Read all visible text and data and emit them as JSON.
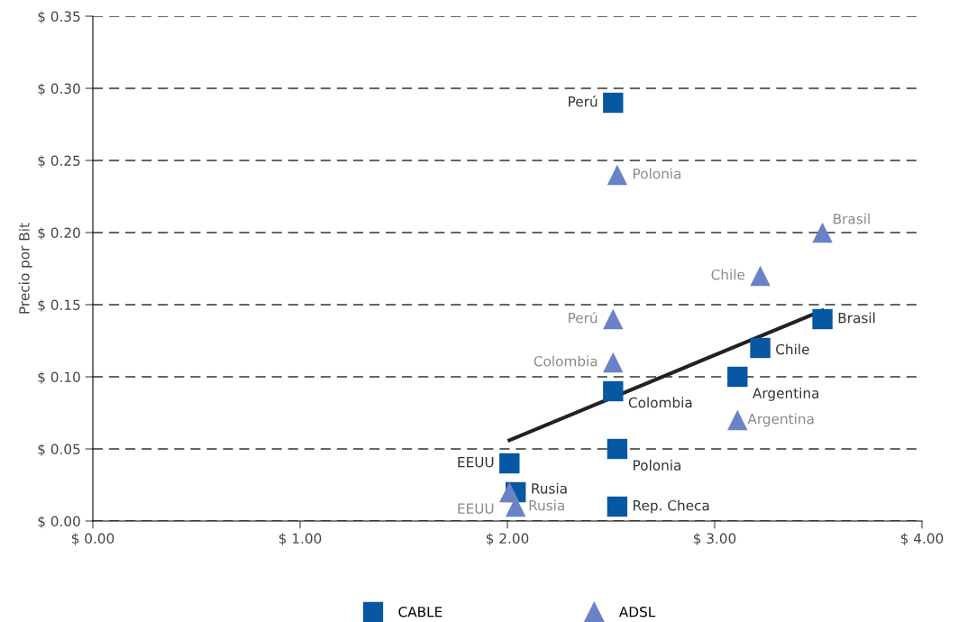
{
  "chart_data": {
    "type": "scatter",
    "ylabel": "Precio por Bit",
    "grid": "y",
    "legend": "bottom",
    "xlim": [
      0,
      4
    ],
    "xticks": [
      {
        "value": 0,
        "label": "$ 0.00"
      },
      {
        "value": 1,
        "label": "$ 1.00"
      },
      {
        "value": 2,
        "label": "$ 2.00"
      },
      {
        "value": 3,
        "label": "$ 3.00"
      },
      {
        "value": 4,
        "label": "$ 4.00"
      }
    ],
    "ylim": [
      0,
      0.35
    ],
    "yticks": [
      {
        "value": 0,
        "label": "$ 0.00"
      },
      {
        "value": 0.05,
        "label": "$ 0.05"
      },
      {
        "value": 0.1,
        "label": "$ 0.10"
      },
      {
        "value": 0.15,
        "label": "$ 0.15"
      },
      {
        "value": 0.2,
        "label": "$ 0.20"
      },
      {
        "value": 0.25,
        "label": "$ 0.25"
      },
      {
        "value": 0.3,
        "label": "$ 0.30"
      },
      {
        "value": 0.35,
        "label": "$ 0.35"
      }
    ],
    "series": [
      {
        "name": "CABLE",
        "color": "#0757a3",
        "marker": "square",
        "x": [
          2.51,
          3.52,
          3.22,
          3.11,
          2.51,
          2.53,
          2.01,
          2.04,
          2.53
        ],
        "values": [
          0.29,
          0.14,
          0.12,
          0.1,
          0.09,
          0.05,
          0.04,
          0.02,
          0.01
        ],
        "value_labels": [
          "Perú",
          "Brasil",
          "Chile",
          "Argentina",
          "Colombia",
          "Polonia",
          "EEUU",
          "Rusia",
          "Rep. Checa"
        ]
      },
      {
        "name": "ADSL",
        "color": "#6a82c6",
        "marker": "triangle",
        "x": [
          2.53,
          3.52,
          3.22,
          2.51,
          2.51,
          3.11,
          2.01,
          2.04
        ],
        "values": [
          0.24,
          0.2,
          0.17,
          0.14,
          0.11,
          0.07,
          0.02,
          0.01
        ],
        "value_labels": [
          "Polonia",
          "Brasil",
          "Chile",
          "Perú",
          "Colombia",
          "Argentina",
          "EEUU",
          "Rusia"
        ]
      },
      {
        "type": "line",
        "color": "#222222",
        "marker": "none",
        "line_style": "solid",
        "x": [
          2.01,
          3.52
        ],
        "values": [
          0.056,
          0.146
        ]
      }
    ]
  }
}
